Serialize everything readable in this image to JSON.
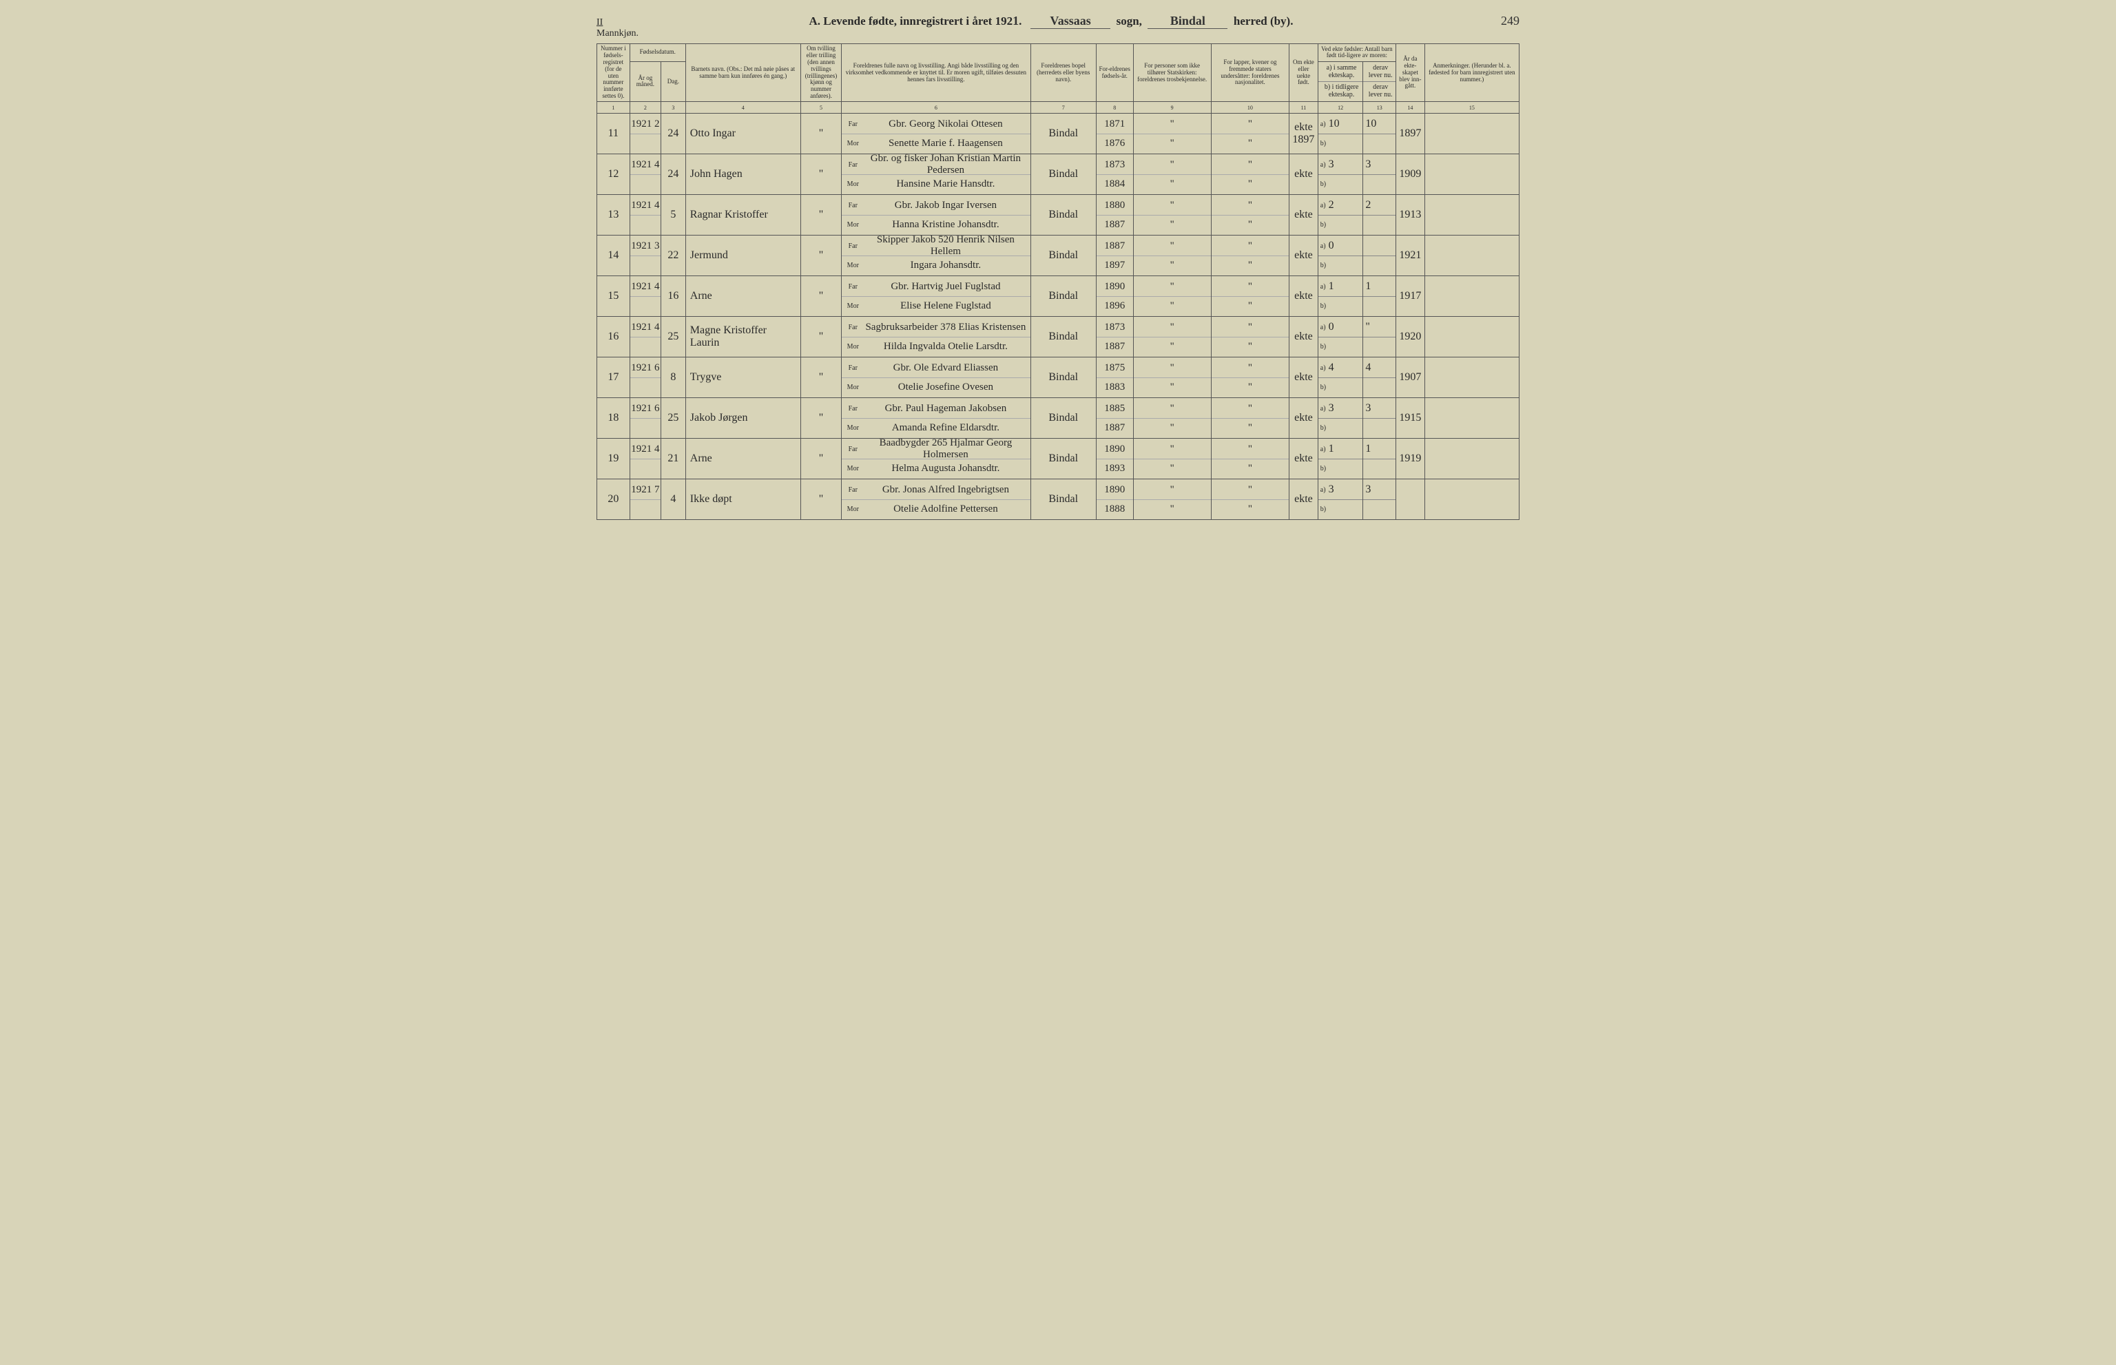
{
  "page": {
    "roman": "II",
    "gender_label": "Mannkjøn.",
    "page_number_hand": "249",
    "title_prefix": "A.  Levende fødte, innregistrert i året 192",
    "year_suffix": "1",
    "sogn_label": "sogn,",
    "sogn": "Vassaas",
    "herred_label": "herred (by).",
    "herred": "Bindal"
  },
  "columns": {
    "c1": "Nummer i fødsels-registret (for de uten nummer innførte settes 0).",
    "c2_top": "Fødselsdatum.",
    "c2a": "År og måned.",
    "c2b": "Dag.",
    "c4": "Barnets navn.\n(Obs.: Det må nøie påses at samme barn kun innføres én gang.)",
    "c5": "Om tvilling eller trilling (den annen tvillings (trillingenes) kjønn og nummer anføres).",
    "c6": "Foreldrenes fulle navn og livsstilling.\nAngi både livsstilling og den virksomhet vedkommende er knyttet til. Er moren ugift, tilføies dessuten hennes fars livsstilling.",
    "c7": "Foreldrenes bopel (herredets eller byens navn).",
    "c8": "For-eldrenes fødsels-år.",
    "c9": "For personer som ikke tilhører Statskirken: foreldrenes trosbekjennelse.",
    "c10": "For lapper, kvener og fremmede staters undersåtter: foreldrenes nasjonalitet.",
    "c11": "Om ekte eller uekte født.",
    "c12_top": "Ved ekte fødsler:\nAntall barn født tid-ligere av moren:",
    "c12a": "a) i samme ekteskap.",
    "c12b": "b) i tidligere ekteskap.",
    "c13a": "derav lever nu.",
    "c13b": "derav lever nu.",
    "c14": "År da ekte-skapet blev inn-gått.",
    "c15": "Anmerkninger.\n(Herunder bl. a. fødested for barn innregistrert uten nummer.)",
    "far": "Far",
    "mor": "Mor"
  },
  "colnums": [
    "1",
    "2",
    "3",
    "4",
    "5",
    "6",
    "7",
    "8",
    "9",
    "10",
    "11",
    "12",
    "13",
    "14",
    "15"
  ],
  "rows": [
    {
      "num": "11",
      "ym": "1921\n2",
      "day": "24",
      "name": "Otto Ingar",
      "twin": "\"",
      "far": "Gbr. Georg Nikolai Ottesen",
      "mor": "Senette Marie f. Haagensen",
      "bopel": "Bindal",
      "fy": "1871",
      "my": "1876",
      "c9f": "\"",
      "c9m": "\"",
      "c10f": "\"",
      "c10m": "\"",
      "ekte": "ekte\n1897",
      "a": "10",
      "ad": "10",
      "b": "",
      "bd": "",
      "yr": "1897",
      "anm": ""
    },
    {
      "num": "12",
      "ym": "1921\n4",
      "day": "24",
      "name": "John Hagen",
      "twin": "\"",
      "far": "Gbr. og fisker Johan Kristian Martin Pedersen",
      "mor": "Hansine Marie Hansdtr.",
      "bopel": "Bindal",
      "fy": "1873",
      "my": "1884",
      "c9f": "\"",
      "c9m": "\"",
      "c10f": "\"",
      "c10m": "\"",
      "ekte": "ekte",
      "a": "3",
      "ad": "3",
      "b": "",
      "bd": "",
      "yr": "1909",
      "anm": ""
    },
    {
      "num": "13",
      "ym": "1921\n4",
      "day": "5",
      "name": "Ragnar Kristoffer",
      "twin": "\"",
      "far": "Gbr. Jakob Ingar Iversen",
      "mor": "Hanna Kristine Johansdtr.",
      "bopel": "Bindal",
      "fy": "1880",
      "my": "1887",
      "c9f": "\"",
      "c9m": "\"",
      "c10f": "\"",
      "c10m": "\"",
      "ekte": "ekte",
      "a": "2",
      "ad": "2",
      "b": "",
      "bd": "",
      "yr": "1913",
      "anm": ""
    },
    {
      "num": "14",
      "ym": "1921\n3",
      "day": "22",
      "name": "Jermund",
      "twin": "\"",
      "far": "Skipper Jakob 520 Henrik Nilsen Hellem",
      "mor": "Ingara Johansdtr.",
      "bopel": "Bindal",
      "fy": "1887",
      "my": "1897",
      "c9f": "\"",
      "c9m": "\"",
      "c10f": "\"",
      "c10m": "\"",
      "ekte": "ekte",
      "a": "0",
      "ad": "",
      "b": "",
      "bd": "",
      "yr": "1921",
      "anm": ""
    },
    {
      "num": "15",
      "ym": "1921\n4",
      "day": "16",
      "name": "Arne",
      "twin": "\"",
      "far": "Gbr. Hartvig Juel Fuglstad",
      "mor": "Elise Helene Fuglstad",
      "bopel": "Bindal",
      "fy": "1890",
      "my": "1896",
      "c9f": "\"",
      "c9m": "\"",
      "c10f": "\"",
      "c10m": "\"",
      "ekte": "ekte",
      "a": "1",
      "ad": "1",
      "b": "",
      "bd": "",
      "yr": "1917",
      "anm": ""
    },
    {
      "num": "16",
      "ym": "1921\n4",
      "day": "25",
      "name": "Magne Kristoffer Laurin",
      "twin": "\"",
      "far": "Sagbruksarbeider 378 Elias Kristensen",
      "mor": "Hilda Ingvalda Otelie Larsdtr.",
      "bopel": "Bindal",
      "fy": "1873",
      "my": "1887",
      "c9f": "\"",
      "c9m": "\"",
      "c10f": "\"",
      "c10m": "\"",
      "ekte": "ekte",
      "a": "0",
      "ad": "\"",
      "b": "",
      "bd": "",
      "yr": "1920",
      "anm": ""
    },
    {
      "num": "17",
      "ym": "1921\n6",
      "day": "8",
      "name": "Trygve",
      "twin": "\"",
      "far": "Gbr. Ole Edvard Eliassen",
      "mor": "Otelie Josefine Ovesen",
      "bopel": "Bindal",
      "fy": "1875",
      "my": "1883",
      "c9f": "\"",
      "c9m": "\"",
      "c10f": "\"",
      "c10m": "\"",
      "ekte": "ekte",
      "a": "4",
      "ad": "4",
      "b": "",
      "bd": "",
      "yr": "1907",
      "anm": ""
    },
    {
      "num": "18",
      "ym": "1921\n6",
      "day": "25",
      "name": "Jakob Jørgen",
      "twin": "\"",
      "far": "Gbr. Paul Hageman Jakobsen",
      "mor": "Amanda Refine Eldarsdtr.",
      "bopel": "Bindal",
      "fy": "1885",
      "my": "1887",
      "c9f": "\"",
      "c9m": "\"",
      "c10f": "\"",
      "c10m": "\"",
      "ekte": "ekte",
      "a": "3",
      "ad": "3",
      "b": "",
      "bd": "",
      "yr": "1915",
      "anm": ""
    },
    {
      "num": "19",
      "ym": "1921\n4",
      "day": "21",
      "name": "Arne",
      "twin": "\"",
      "far": "Baadbygder 265 Hjalmar Georg Holmersen",
      "mor": "Helma Augusta Johansdtr.",
      "bopel": "Bindal",
      "fy": "1890",
      "my": "1893",
      "c9f": "\"",
      "c9m": "\"",
      "c10f": "\"",
      "c10m": "\"",
      "ekte": "ekte",
      "a": "1",
      "ad": "1",
      "b": "",
      "bd": "",
      "yr": "1919",
      "anm": ""
    },
    {
      "num": "20",
      "ym": "1921\n7",
      "day": "4",
      "name": "Ikke døpt",
      "twin": "\"",
      "far": "Gbr. Jonas Alfred Ingebrigtsen",
      "mor": "Otelie Adolfine Pettersen",
      "bopel": "Bindal",
      "fy": "1890",
      "my": "1888",
      "c9f": "\"",
      "c9m": "\"",
      "c10f": "\"",
      "c10m": "\"",
      "ekte": "ekte",
      "a": "3",
      "ad": "3",
      "b": "",
      "bd": "",
      "yr": "",
      "anm": ""
    }
  ]
}
